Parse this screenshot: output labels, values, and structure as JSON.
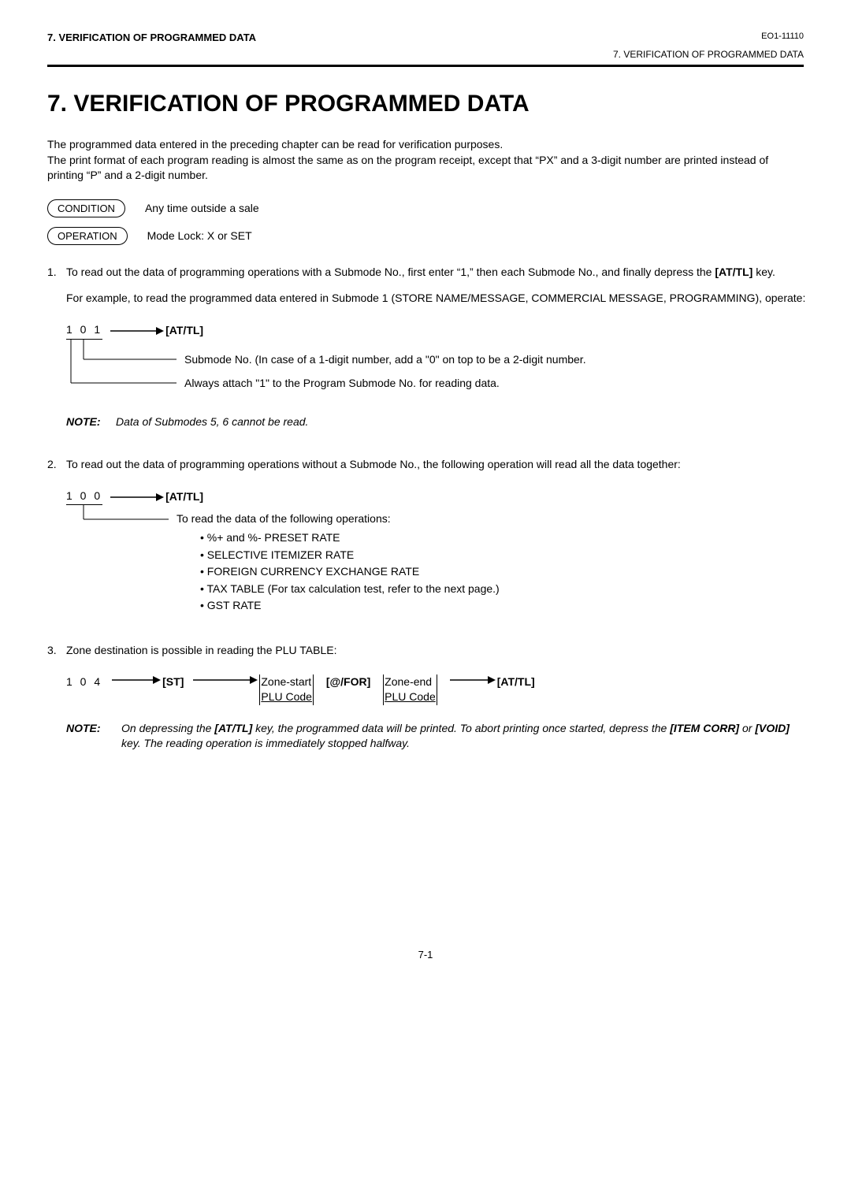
{
  "header": {
    "left": "7.   VERIFICATION OF PROGRAMMED DATA",
    "right_code": "EO1-11110",
    "right_sub": "7.  VERIFICATION OF PROGRAMMED DATA"
  },
  "title": "7.    VERIFICATION OF PROGRAMMED DATA",
  "intro": "The programmed data entered in the preceding chapter can be read for verification purposes.\nThe print format of each program reading is almost the same as on the program receipt,  except that “PX” and a 3-digit number are printed instead of printing “P” and a 2-digit number.",
  "condition": {
    "label": "CONDITION",
    "text": "Any time outside a sale"
  },
  "operation": {
    "label": "OPERATION",
    "text": "Mode Lock:  X or SET"
  },
  "item1": {
    "num": "1.",
    "text": "To read out the data of programming operations with a Submode No., first enter “1,” then each Submode No., and finally depress the [AT/TL] key.",
    "sub": "For example, to read the programmed data entered in Submode 1 (STORE NAME/MESSAGE, COMMERCIAL MESSAGE, PROGRAMMING), operate:",
    "code": "1 0 1",
    "key": "[AT/TL]",
    "anno1": "Submode No. (In case of a 1-digit number, add a “0” on top to be a 2-digit number.",
    "anno2": "Always attach “1” to the Program Submode No. for reading data."
  },
  "note1": {
    "label": "NOTE:",
    "text": "Data of Submodes 5, 6 cannot be read."
  },
  "item2": {
    "num": "2.",
    "text": "To read out the data of programming operations without a Submode No., the following operation will read all the data together:",
    "code": "1 0 0",
    "key": "[AT/TL]",
    "anno": "To read the data of the following operations:",
    "bullets": [
      "%+ and %- PRESET RATE",
      "SELECTIVE ITEMIZER RATE",
      "FOREIGN CURRENCY EXCHANGE RATE",
      "TAX TABLE (For tax calculation test, refer to the next page.)",
      "GST RATE"
    ]
  },
  "item3": {
    "num": "3.",
    "text": "Zone destination is possible in reading the PLU TABLE:",
    "code": "1 0 4",
    "st": "[ST]",
    "box1a": "Zone-start",
    "box1b": "PLU Code",
    "atfor": "[@/FOR]",
    "box2a": "Zone-end",
    "box2b": "PLU Code",
    "attl": "[AT/TL]"
  },
  "note2": {
    "label": "NOTE:",
    "text": "On depressing the [AT/TL] key, the programmed data will be printed. To abort printing once started, depress the [ITEM CORR] or [VOID] key. The reading operation is immediately stopped halfway.",
    "b1": "[AT/TL]",
    "b2": "[ITEM CORR]",
    "b3": "[VOID]"
  },
  "page_num": "7-1"
}
